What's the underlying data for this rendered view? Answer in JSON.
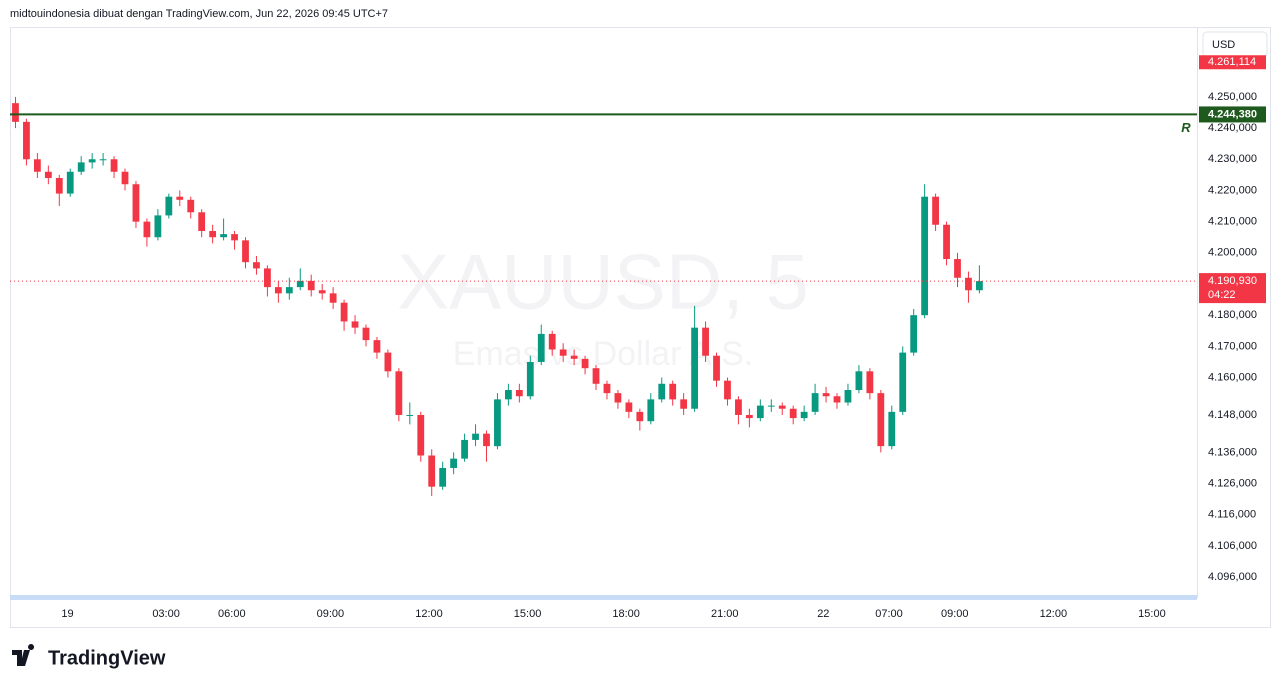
{
  "header": "midtouindonesia dibuat dengan TradingView.com, Jun 22, 2026 09:45 UTC+7",
  "footer_logo": "TradingView",
  "chart_data": {
    "type": "candlestick",
    "watermark": "XAUUSD, 5",
    "watermark_subtitle": "Emas vs Dollar A.S.",
    "currency": "USD",
    "up_color": "#089981",
    "down_color": "#f23645",
    "xlim": [
      0,
      432
    ],
    "candle_step": 4,
    "xticks": [
      {
        "value": 21,
        "label": "19"
      },
      {
        "value": 57,
        "label": "03:00"
      },
      {
        "value": 81,
        "label": "06:00"
      },
      {
        "value": 117,
        "label": "09:00"
      },
      {
        "value": 153,
        "label": "12:00"
      },
      {
        "value": 189,
        "label": "15:00"
      },
      {
        "value": 225,
        "label": "18:00"
      },
      {
        "value": 261,
        "label": "21:00"
      },
      {
        "value": 297,
        "label": "22"
      },
      {
        "value": 321,
        "label": "07:00"
      },
      {
        "value": 345,
        "label": "09:00"
      },
      {
        "value": 381,
        "label": "12:00"
      },
      {
        "value": 417,
        "label": "15:00"
      }
    ],
    "ylim": [
      4089.3,
      4272.1
    ],
    "yticks": [
      {
        "value": 4250,
        "label": "4.250,000"
      },
      {
        "value": 4240,
        "label": "4.240,000"
      },
      {
        "value": 4230,
        "label": "4.230,000"
      },
      {
        "value": 4220,
        "label": "4.220,000"
      },
      {
        "value": 4210,
        "label": "4.210,000"
      },
      {
        "value": 4200,
        "label": "4.200,000"
      },
      {
        "value": 4180,
        "label": "4.180,000"
      },
      {
        "value": 4170,
        "label": "4.170,000"
      },
      {
        "value": 4160,
        "label": "4.160,000"
      },
      {
        "value": 4148,
        "label": "4.148,000"
      },
      {
        "value": 4136,
        "label": "4.136,000"
      },
      {
        "value": 4126,
        "label": "4.126,000"
      },
      {
        "value": 4116,
        "label": "4.116,000"
      },
      {
        "value": 4106,
        "label": "4.106,000"
      },
      {
        "value": 4096,
        "label": "4.096,000"
      }
    ],
    "high_marker": {
      "value": 4261.114,
      "label": "4.261,114",
      "color": "#f23645"
    },
    "resistance": {
      "value": 4244.38,
      "label": "4.244,380",
      "name": "R",
      "color": "#1e5a1e"
    },
    "last_price": {
      "value": 4190.93,
      "label": "4.190,930",
      "countdown": "04:22",
      "color": "#f23645"
    },
    "candles": [
      [
        4248,
        4250,
        4240,
        4242
      ],
      [
        4242,
        4243,
        4228,
        4230
      ],
      [
        4230,
        4232,
        4224,
        4226
      ],
      [
        4226,
        4228,
        4222,
        4224
      ],
      [
        4224,
        4225,
        4215,
        4219
      ],
      [
        4219,
        4227,
        4218,
        4226
      ],
      [
        4226,
        4231,
        4225,
        4229
      ],
      [
        4229,
        4232,
        4227,
        4230
      ],
      [
        4230,
        4232,
        4228,
        4230
      ],
      [
        4230,
        4231,
        4224,
        4226
      ],
      [
        4226,
        4227,
        4220,
        4222
      ],
      [
        4222,
        4223,
        4208,
        4210
      ],
      [
        4210,
        4211,
        4202,
        4205
      ],
      [
        4205,
        4214,
        4204,
        4212
      ],
      [
        4212,
        4219,
        4211,
        4218
      ],
      [
        4218,
        4220,
        4215,
        4217
      ],
      [
        4217,
        4218,
        4211,
        4213
      ],
      [
        4213,
        4214,
        4205,
        4207
      ],
      [
        4207,
        4209,
        4203,
        4205
      ],
      [
        4205,
        4211,
        4204,
        4206
      ],
      [
        4206,
        4207,
        4201,
        4204
      ],
      [
        4204,
        4205,
        4195,
        4197
      ],
      [
        4197,
        4199,
        4193,
        4195
      ],
      [
        4195,
        4196,
        4186,
        4189
      ],
      [
        4189,
        4191,
        4184,
        4187
      ],
      [
        4187,
        4192,
        4185,
        4189
      ],
      [
        4189,
        4195,
        4188,
        4191
      ],
      [
        4191,
        4193,
        4186,
        4188
      ],
      [
        4188,
        4190,
        4185,
        4187
      ],
      [
        4187,
        4189,
        4182,
        4184
      ],
      [
        4184,
        4185,
        4175,
        4178
      ],
      [
        4178,
        4180,
        4174,
        4176
      ],
      [
        4176,
        4177,
        4170,
        4172
      ],
      [
        4172,
        4173,
        4166,
        4168
      ],
      [
        4168,
        4169,
        4160,
        4162
      ],
      [
        4162,
        4163,
        4146,
        4148
      ],
      [
        4148,
        4152,
        4145,
        4148
      ],
      [
        4148,
        4149,
        4133,
        4135
      ],
      [
        4135,
        4137,
        4122,
        4125
      ],
      [
        4125,
        4133,
        4124,
        4131
      ],
      [
        4131,
        4136,
        4129,
        4134
      ],
      [
        4134,
        4142,
        4133,
        4140
      ],
      [
        4140,
        4145,
        4138,
        4142
      ],
      [
        4142,
        4143,
        4133,
        4138
      ],
      [
        4138,
        4155,
        4137,
        4153
      ],
      [
        4153,
        4158,
        4151,
        4156
      ],
      [
        4156,
        4158,
        4152,
        4154
      ],
      [
        4154,
        4167,
        4153,
        4165
      ],
      [
        4165,
        4177,
        4164,
        4174
      ],
      [
        4174,
        4175,
        4167,
        4169
      ],
      [
        4169,
        4171,
        4165,
        4167
      ],
      [
        4167,
        4169,
        4164,
        4166
      ],
      [
        4166,
        4167,
        4161,
        4163
      ],
      [
        4163,
        4164,
        4156,
        4158
      ],
      [
        4158,
        4159,
        4153,
        4155
      ],
      [
        4155,
        4156,
        4150,
        4152
      ],
      [
        4152,
        4153,
        4147,
        4149
      ],
      [
        4149,
        4150,
        4143,
        4146
      ],
      [
        4146,
        4155,
        4145,
        4153
      ],
      [
        4153,
        4160,
        4152,
        4158
      ],
      [
        4158,
        4159,
        4151,
        4153
      ],
      [
        4153,
        4155,
        4148,
        4150
      ],
      [
        4150,
        4183,
        4149,
        4176
      ],
      [
        4176,
        4178,
        4165,
        4167
      ],
      [
        4167,
        4168,
        4157,
        4159
      ],
      [
        4159,
        4160,
        4151,
        4153
      ],
      [
        4153,
        4154,
        4145,
        4148
      ],
      [
        4148,
        4150,
        4144,
        4147
      ],
      [
        4147,
        4153,
        4146,
        4151
      ],
      [
        4151,
        4153,
        4149,
        4151
      ],
      [
        4151,
        4152,
        4148,
        4150
      ],
      [
        4150,
        4151,
        4145,
        4147
      ],
      [
        4147,
        4151,
        4146,
        4149
      ],
      [
        4149,
        4158,
        4148,
        4155
      ],
      [
        4155,
        4157,
        4152,
        4154
      ],
      [
        4154,
        4155,
        4150,
        4152
      ],
      [
        4152,
        4158,
        4151,
        4156
      ],
      [
        4156,
        4164,
        4155,
        4162
      ],
      [
        4162,
        4163,
        4153,
        4155
      ],
      [
        4155,
        4156,
        4136,
        4138
      ],
      [
        4138,
        4151,
        4137,
        4149
      ],
      [
        4149,
        4170,
        4148,
        4168
      ],
      [
        4168,
        4182,
        4167,
        4180
      ],
      [
        4180,
        4222,
        4179,
        4218
      ],
      [
        4218,
        4219,
        4207,
        4209
      ],
      [
        4209,
        4210,
        4196,
        4198
      ],
      [
        4198,
        4200,
        4189,
        4192
      ],
      [
        4192,
        4194,
        4184,
        4188
      ],
      [
        4188,
        4196,
        4187,
        4190.93
      ]
    ]
  }
}
